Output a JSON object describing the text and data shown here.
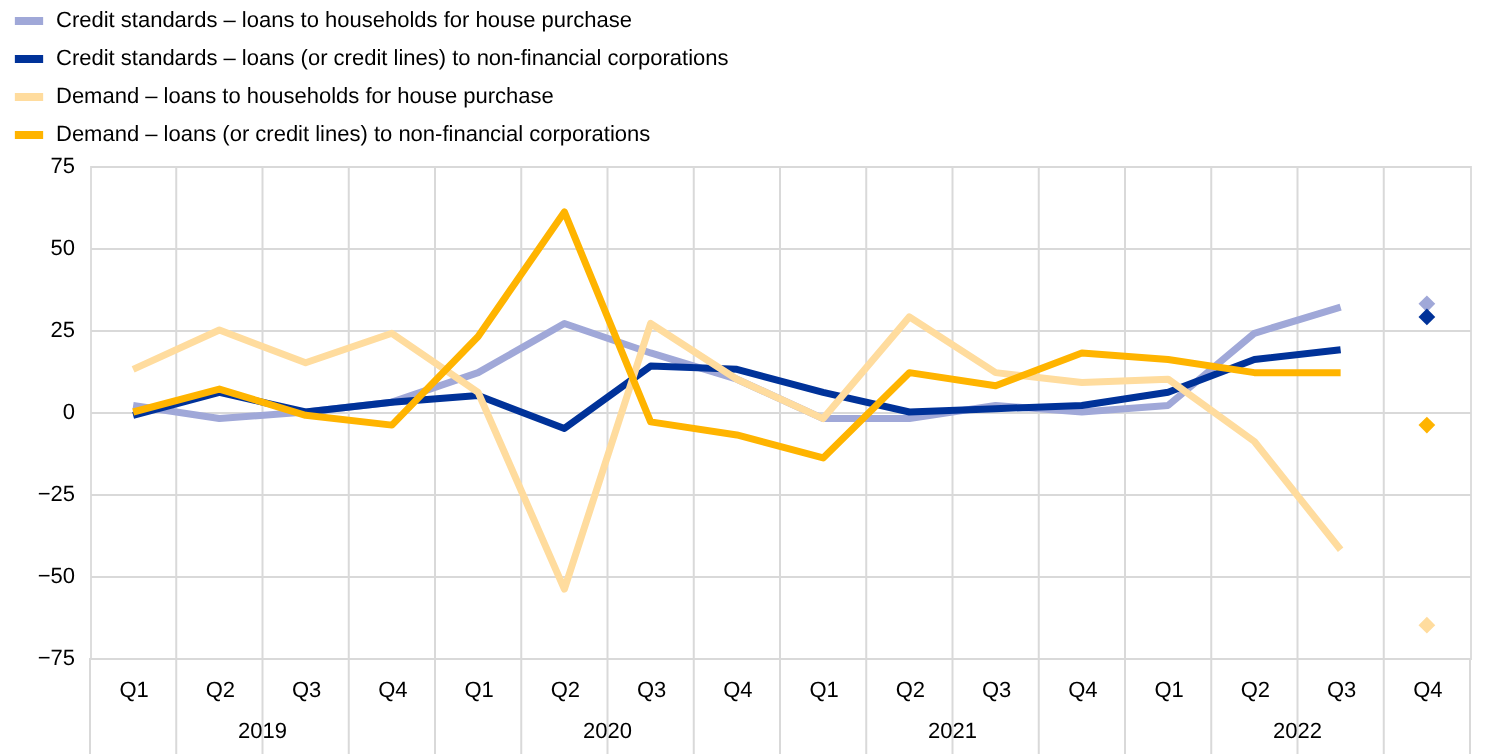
{
  "chart_data": {
    "type": "line",
    "categories": [
      "Q1",
      "Q2",
      "Q3",
      "Q4",
      "Q1",
      "Q2",
      "Q3",
      "Q4",
      "Q1",
      "Q2",
      "Q3",
      "Q4",
      "Q1",
      "Q2",
      "Q3",
      "Q4"
    ],
    "annotations": [
      "2019",
      "2020",
      "2021",
      "2022"
    ],
    "ylim": [
      -75,
      75
    ],
    "yticks": [
      -75,
      -50,
      -25,
      0,
      25,
      50,
      75
    ],
    "grid": true,
    "legend": "top left",
    "line_style": "solid",
    "series": [
      {
        "name": "Credit standards – loans to households for house purchase",
        "color": "#a0a8d8",
        "values": [
          2,
          -2,
          0,
          3,
          12,
          27,
          18,
          10,
          -2,
          -2,
          2,
          0,
          2,
          24,
          32,
          null
        ]
      },
      {
        "name": "Credit standards – loans (or credit lines) to non-financial corporations",
        "color": "#003299",
        "values": [
          -1,
          6,
          0,
          3,
          5,
          -5,
          14,
          13,
          6,
          0,
          1,
          2,
          6,
          16,
          19,
          null
        ]
      },
      {
        "name": "Demand – loans to households for house purchase",
        "color": "#ffdc9e",
        "values": [
          13,
          25,
          15,
          24,
          6,
          -54,
          27,
          10,
          -2,
          29,
          12,
          9,
          10,
          -9,
          -42,
          null
        ]
      },
      {
        "name": "Demand – loans (or credit lines) to non-financial corporations",
        "color": "#ffb400",
        "values": [
          0,
          7,
          -1,
          -4,
          23,
          61,
          -3,
          -7,
          -14,
          12,
          8,
          18,
          16,
          12,
          12,
          null
        ]
      },
      {
        "type": "scatter",
        "marker": "diamond",
        "color": "#a0a8d8",
        "values": [
          null,
          null,
          null,
          null,
          null,
          null,
          null,
          null,
          null,
          null,
          null,
          null,
          null,
          null,
          null,
          33
        ]
      },
      {
        "type": "scatter",
        "marker": "diamond",
        "color": "#003299",
        "values": [
          null,
          null,
          null,
          null,
          null,
          null,
          null,
          null,
          null,
          null,
          null,
          null,
          null,
          null,
          null,
          29
        ]
      },
      {
        "type": "scatter",
        "marker": "diamond",
        "color": "#ffdc9e",
        "values": [
          null,
          null,
          null,
          null,
          null,
          null,
          null,
          null,
          null,
          null,
          null,
          null,
          null,
          null,
          null,
          -65
        ]
      },
      {
        "type": "scatter",
        "marker": "diamond",
        "color": "#ffb400",
        "values": [
          null,
          null,
          null,
          null,
          null,
          null,
          null,
          null,
          null,
          null,
          null,
          null,
          null,
          null,
          null,
          -4
        ]
      }
    ]
  }
}
